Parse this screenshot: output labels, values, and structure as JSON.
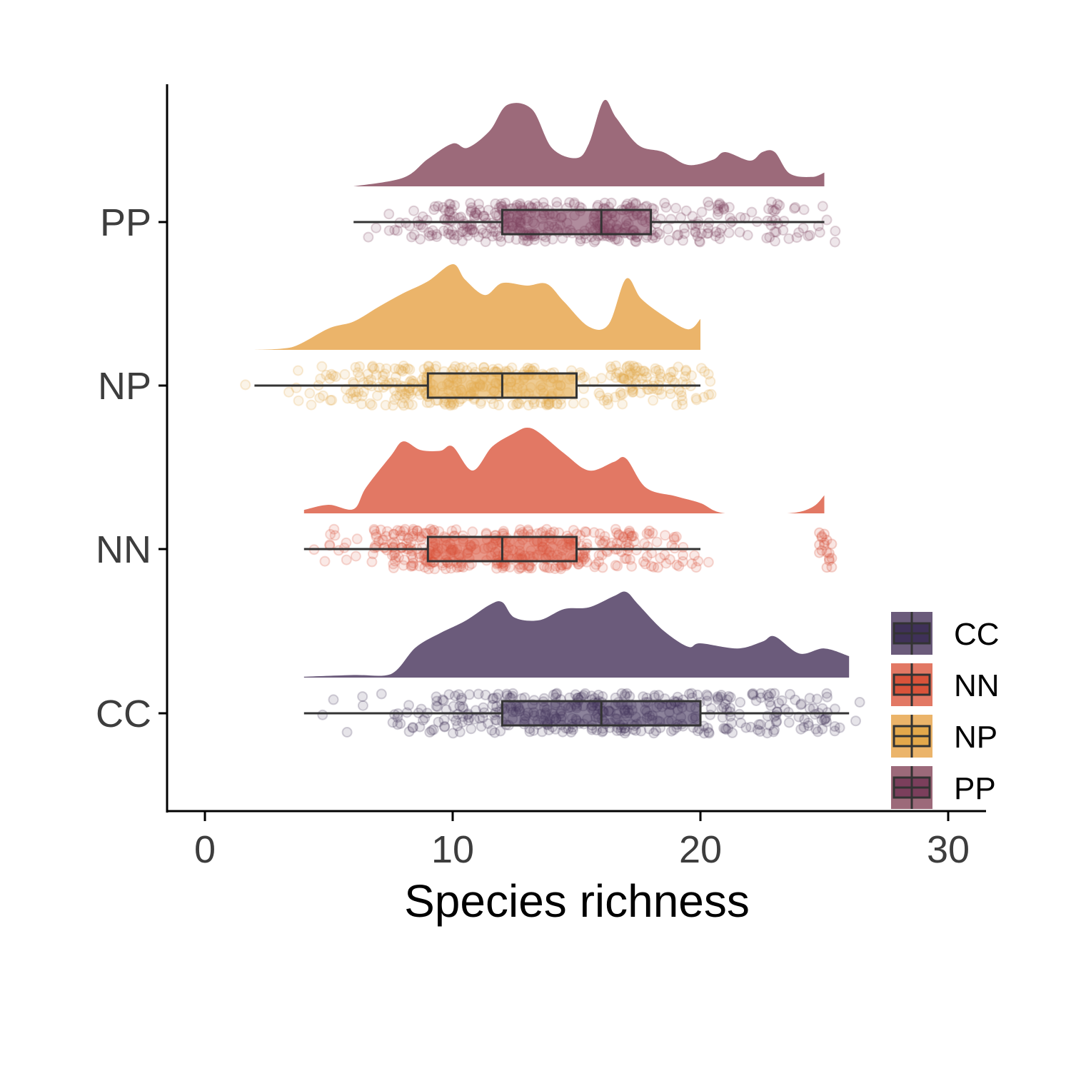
{
  "chart_data": {
    "type": "raincloud",
    "xlabel": "Species richness",
    "ylabel": "",
    "xlim": [
      -1.5,
      31.5
    ],
    "xticks": [
      0,
      10,
      20,
      30
    ],
    "grid": false,
    "legend_position": "bottom-right",
    "groups": [
      {
        "name": "CC",
        "color": "#3f3158",
        "density_color": "#6b5b7b",
        "min": 4,
        "q1": 12,
        "median": 16,
        "q3": 20,
        "max": 26,
        "density": [
          [
            4,
            0.01
          ],
          [
            6,
            0.03
          ],
          [
            7.5,
            0.04
          ],
          [
            8.5,
            0.35
          ],
          [
            9.5,
            0.52
          ],
          [
            10.5,
            0.66
          ],
          [
            11.5,
            0.85
          ],
          [
            12,
            0.88
          ],
          [
            12.5,
            0.7
          ],
          [
            13.5,
            0.67
          ],
          [
            14.5,
            0.8
          ],
          [
            15.5,
            0.82
          ],
          [
            16.5,
            0.95
          ],
          [
            17,
            1.0
          ],
          [
            17.5,
            0.85
          ],
          [
            18.5,
            0.55
          ],
          [
            19.5,
            0.36
          ],
          [
            20,
            0.4
          ],
          [
            21.5,
            0.34
          ],
          [
            22.5,
            0.42
          ],
          [
            23,
            0.48
          ],
          [
            24,
            0.28
          ],
          [
            25,
            0.34
          ],
          [
            26,
            0.25
          ]
        ],
        "outliers": []
      },
      {
        "name": "NN",
        "color": "#d9533a",
        "density_color": "#e27864",
        "min": 4,
        "q1": 9,
        "median": 12,
        "q3": 15,
        "max": 20,
        "density": [
          [
            4,
            0.04
          ],
          [
            5,
            0.1
          ],
          [
            6,
            0.05
          ],
          [
            6.5,
            0.3
          ],
          [
            7.5,
            0.67
          ],
          [
            8,
            0.84
          ],
          [
            8.7,
            0.74
          ],
          [
            9.5,
            0.73
          ],
          [
            10,
            0.78
          ],
          [
            10.8,
            0.5
          ],
          [
            11.6,
            0.78
          ],
          [
            12.5,
            0.94
          ],
          [
            13,
            1.0
          ],
          [
            13.5,
            0.94
          ],
          [
            14.5,
            0.7
          ],
          [
            15.5,
            0.5
          ],
          [
            16.5,
            0.6
          ],
          [
            17,
            0.64
          ],
          [
            17.8,
            0.3
          ],
          [
            19,
            0.2
          ],
          [
            20,
            0.12
          ],
          [
            21,
            0.0
          ],
          [
            23.5,
            0.0
          ],
          [
            24.5,
            0.07
          ],
          [
            25,
            0.21
          ]
        ],
        "outliers": [
          24.9,
          25.0,
          25.1,
          25.2,
          24.8,
          25.3
        ]
      },
      {
        "name": "NP",
        "color": "#e3a84b",
        "density_color": "#ebb46a",
        "min": 2,
        "q1": 9,
        "median": 12,
        "q3": 15,
        "max": 20,
        "density": [
          [
            2,
            0.0
          ],
          [
            3.5,
            0.03
          ],
          [
            5,
            0.25
          ],
          [
            6,
            0.33
          ],
          [
            7,
            0.5
          ],
          [
            8,
            0.66
          ],
          [
            9,
            0.8
          ],
          [
            10,
            1.0
          ],
          [
            10.5,
            0.82
          ],
          [
            11.3,
            0.64
          ],
          [
            12,
            0.78
          ],
          [
            13,
            0.75
          ],
          [
            13.8,
            0.77
          ],
          [
            14.5,
            0.56
          ],
          [
            15.5,
            0.27
          ],
          [
            16.3,
            0.3
          ],
          [
            17,
            0.83
          ],
          [
            17.6,
            0.6
          ],
          [
            18.5,
            0.4
          ],
          [
            19.5,
            0.24
          ],
          [
            20,
            0.36
          ]
        ],
        "outliers": []
      },
      {
        "name": "PP",
        "color": "#7b3f5c",
        "density_color": "#9c6a7a",
        "min": 6,
        "q1": 12,
        "median": 16,
        "q3": 18,
        "max": 25,
        "density": [
          [
            6,
            0.0
          ],
          [
            8,
            0.1
          ],
          [
            9,
            0.32
          ],
          [
            10,
            0.5
          ],
          [
            10.6,
            0.45
          ],
          [
            11.5,
            0.65
          ],
          [
            12.2,
            0.95
          ],
          [
            13.2,
            0.9
          ],
          [
            14,
            0.45
          ],
          [
            15,
            0.33
          ],
          [
            15.5,
            0.5
          ],
          [
            16.1,
            1.0
          ],
          [
            16.6,
            0.8
          ],
          [
            17.5,
            0.48
          ],
          [
            18.5,
            0.4
          ],
          [
            19.5,
            0.25
          ],
          [
            20.5,
            0.31
          ],
          [
            21,
            0.4
          ],
          [
            22,
            0.3
          ],
          [
            22.5,
            0.4
          ],
          [
            23,
            0.4
          ],
          [
            23.6,
            0.15
          ],
          [
            24.5,
            0.11
          ],
          [
            25,
            0.16
          ]
        ],
        "outliers": []
      }
    ]
  }
}
